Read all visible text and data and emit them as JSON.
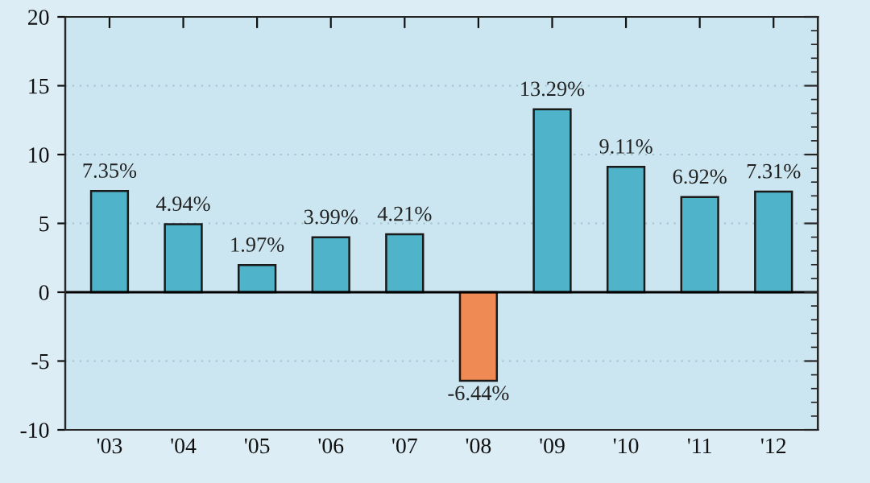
{
  "chart_data": {
    "type": "bar",
    "categories": [
      "'03",
      "'04",
      "'05",
      "'06",
      "'07",
      "'08",
      "'09",
      "'10",
      "'11",
      "'12"
    ],
    "values": [
      7.35,
      4.94,
      1.97,
      3.99,
      4.21,
      -6.44,
      13.29,
      9.11,
      6.92,
      7.31
    ],
    "colors": [
      "#4fb3c9",
      "#4fb3c9",
      "#4fb3c9",
      "#4fb3c9",
      "#4fb3c9",
      "#f08a55",
      "#4fb3c9",
      "#4fb3c9",
      "#4fb3c9",
      "#4fb3c9"
    ],
    "value_labels": [
      "7.35%",
      "4.94%",
      "1.97%",
      "3.99%",
      "4.21%",
      "-6.44%",
      "13.29%",
      "9.11%",
      "6.92%",
      "7.31%"
    ],
    "ylim": [
      -10,
      20
    ],
    "yticks": [
      -10,
      -5,
      0,
      5,
      10,
      15,
      20
    ],
    "ref_lines": [
      {
        "axis": "y",
        "value": 0,
        "color": "#000000"
      }
    ],
    "grid": "y"
  }
}
